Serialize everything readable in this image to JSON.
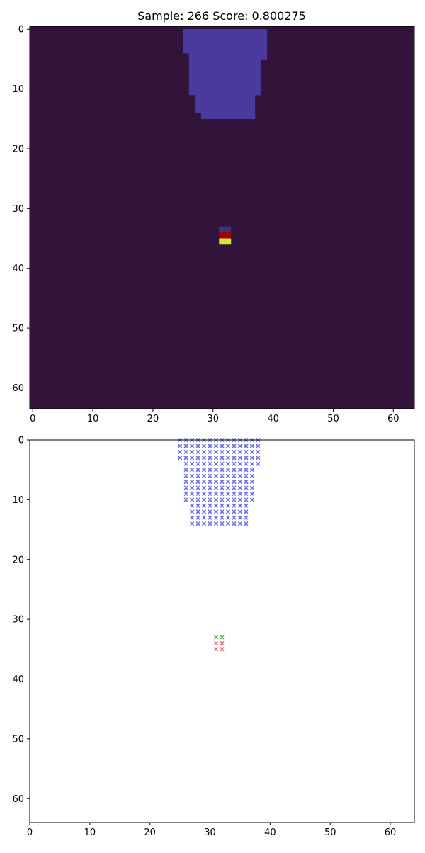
{
  "title": "Sample: 266  Score: 0.800275",
  "chart_data": [
    {
      "type": "heatmap",
      "title": "Sample: 266  Score: 0.800275",
      "xlim": [
        -0.5,
        63.5
      ],
      "ylim": [
        63.5,
        -0.5
      ],
      "xticks": [
        0,
        10,
        20,
        30,
        40,
        50,
        60
      ],
      "yticks": [
        0,
        10,
        20,
        30,
        40,
        50,
        60
      ],
      "background_color": "#32143a",
      "block_rows": [
        [
          0,
          25,
          38
        ],
        [
          1,
          25,
          38
        ],
        [
          2,
          25,
          38
        ],
        [
          3,
          25,
          38
        ],
        [
          4,
          26,
          38
        ],
        [
          5,
          26,
          37
        ],
        [
          6,
          26,
          37
        ],
        [
          7,
          26,
          37
        ],
        [
          8,
          26,
          37
        ],
        [
          9,
          26,
          37
        ],
        [
          10,
          26,
          37
        ],
        [
          11,
          27,
          36
        ],
        [
          12,
          27,
          36
        ],
        [
          13,
          27,
          36
        ],
        [
          14,
          28,
          36
        ]
      ],
      "block_color": "#4b3a9e",
      "small_cells": [
        {
          "row": 33,
          "col_start": 31,
          "col_end": 32,
          "color": "#3a3380"
        },
        {
          "row": 34,
          "col_start": 31,
          "col_end": 32,
          "color": "#a00000"
        },
        {
          "row": 35,
          "col_start": 31,
          "col_end": 32,
          "color": "#d4e838"
        }
      ]
    },
    {
      "type": "scatter",
      "xlim": [
        0,
        64
      ],
      "ylim": [
        64,
        0
      ],
      "xticks": [
        0,
        10,
        20,
        30,
        40,
        50,
        60
      ],
      "yticks": [
        0,
        10,
        20,
        30,
        40,
        50,
        60
      ],
      "marker": "x",
      "series": [
        {
          "color": "#5555dd",
          "rows": [
            [
              0,
              25,
              38
            ],
            [
              1,
              25,
              38
            ],
            [
              2,
              25,
              38
            ],
            [
              3,
              25,
              38
            ],
            [
              4,
              26,
              38
            ],
            [
              5,
              26,
              37
            ],
            [
              6,
              26,
              37
            ],
            [
              7,
              26,
              37
            ],
            [
              8,
              26,
              37
            ],
            [
              9,
              26,
              37
            ],
            [
              10,
              26,
              37
            ],
            [
              11,
              27,
              36
            ],
            [
              12,
              27,
              36
            ],
            [
              13,
              27,
              36
            ],
            [
              14,
              27,
              36
            ]
          ]
        },
        {
          "color": "#44aa44",
          "points": [
            [
              31,
              33
            ],
            [
              32,
              33
            ]
          ]
        },
        {
          "color": "#ee5555",
          "points": [
            [
              31,
              34
            ],
            [
              32,
              34
            ],
            [
              31,
              35
            ],
            [
              32,
              35
            ]
          ]
        }
      ]
    }
  ]
}
